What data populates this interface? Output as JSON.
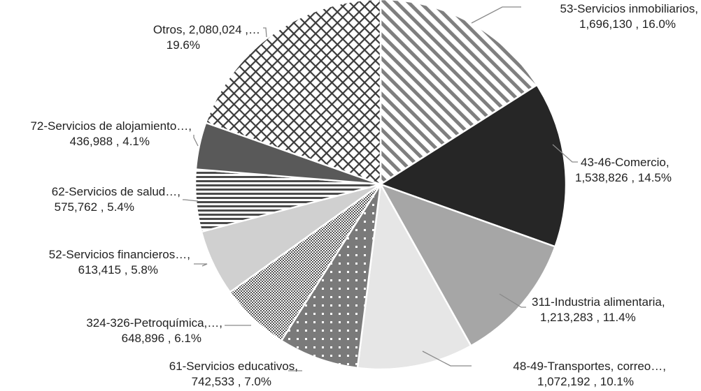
{
  "chart_data": {
    "type": "pie",
    "title": "",
    "slices": [
      {
        "name": "53-Servicios inmobiliarios,",
        "value": 1696130,
        "value_label": "1,696,130",
        "percent_label": "16.0%",
        "style": "diag"
      },
      {
        "name": "43-46-Comercio,",
        "value": 1538826,
        "value_label": "1,538,826",
        "percent_label": "14.5%",
        "style": "solid-dark",
        "color": "#262626"
      },
      {
        "name": "311-Industria alimentaria,",
        "value": 1213283,
        "value_label": "1,213,283",
        "percent_label": "11.4%",
        "style": "solid",
        "color": "#a6a6a6"
      },
      {
        "name": "48-49-Transportes, correo…,",
        "value": 1072192,
        "value_label": "1,072,192",
        "percent_label": "10.1%",
        "style": "solid",
        "color": "#e6e6e6"
      },
      {
        "name": "61-Servicios educativos,",
        "value": 742533,
        "value_label": "742,533",
        "percent_label": "7.0%",
        "style": "dots-big"
      },
      {
        "name": "324-326-Petroquímica,…,",
        "value": 648896,
        "value_label": "648,896",
        "percent_label": "6.1%",
        "style": "dots-fine"
      },
      {
        "name": "52-Servicios financieros…,",
        "value": 613415,
        "value_label": "613,415",
        "percent_label": "5.8%",
        "style": "solid",
        "color": "#d0d0d0"
      },
      {
        "name": "62-Servicios de salud…,",
        "value": 575762,
        "value_label": "575,762",
        "percent_label": "5.4%",
        "style": "hlines"
      },
      {
        "name": "72-Servicios de alojamiento…,",
        "value": 436988,
        "value_label": "436,988",
        "percent_label": "4.1%",
        "style": "solid",
        "color": "#595959"
      },
      {
        "name": "Otros, ",
        "value": 2080024,
        "value_label": "2,080,024",
        "percent_label": "19.6%",
        "style": "crosshatch"
      }
    ]
  },
  "labels": [
    {
      "line1": "53-Servicios inmobiliarios,",
      "line2": "1,696,130 , 16.0%"
    },
    {
      "line1": "43-46-Comercio,",
      "line2": "1,538,826 , 14.5%"
    },
    {
      "line1": "311-Industria alimentaria,",
      "line2": "1,213,283 , 11.4%"
    },
    {
      "line1": "48-49-Transportes, correo…,",
      "line2": "1,072,192 , 10.1%"
    },
    {
      "line1": "61-Servicios educativos,",
      "line2": "742,533 , 7.0%"
    },
    {
      "line1": "324-326-Petroquímica,…,",
      "line2": "648,896 , 6.1%"
    },
    {
      "line1": "52-Servicios financieros…,",
      "line2": "613,415 , 5.8%"
    },
    {
      "line1": "62-Servicios de salud…,",
      "line2": "575,762 , 5.4%"
    },
    {
      "line1": "72-Servicios de alojamiento…,",
      "line2": "436,988 , 4.1%"
    },
    {
      "line1": "Otros, 2,080,024 ,…",
      "line2": "19.6%"
    }
  ]
}
